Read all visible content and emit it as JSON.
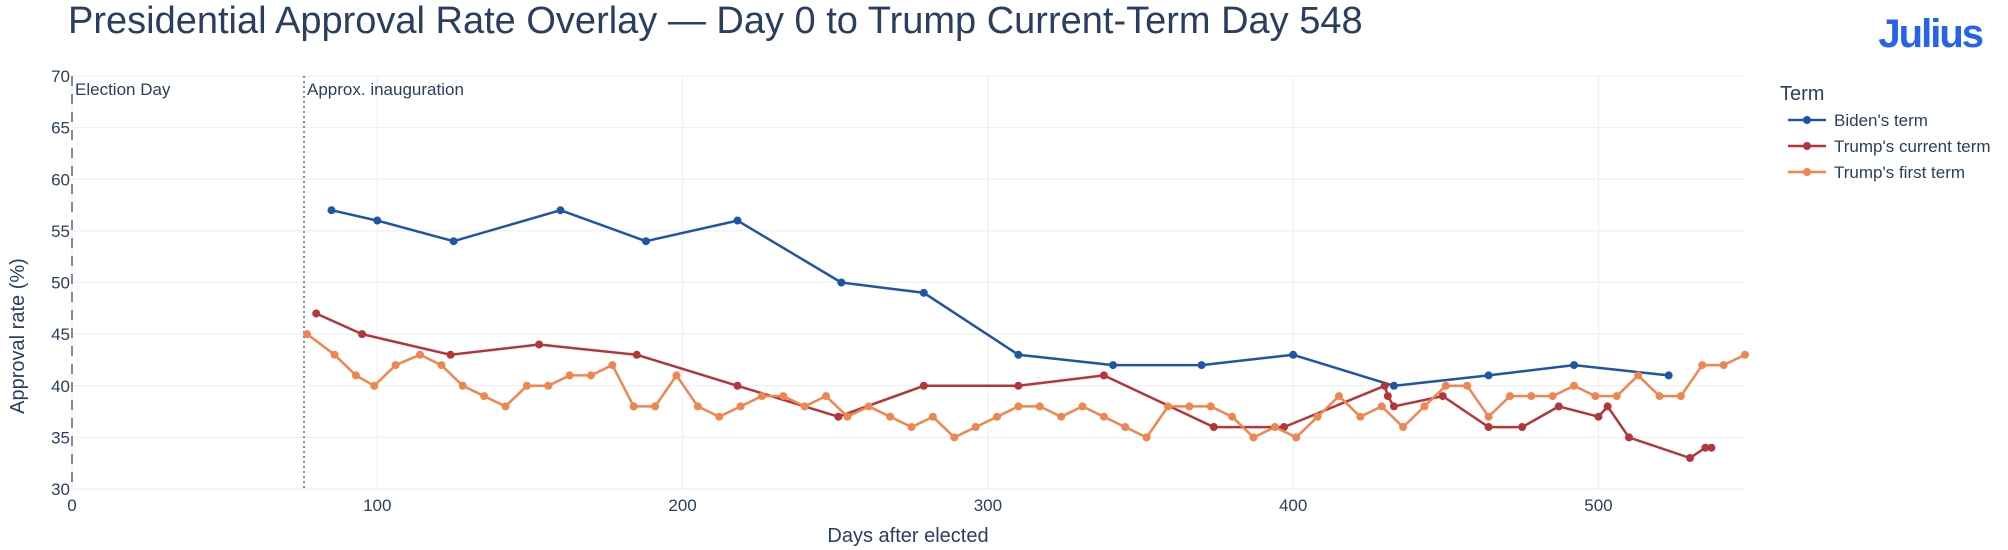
{
  "title": "Presidential Approval Rate Overlay — Day 0 to Trump Current-Term Day 548",
  "brand": "Julius",
  "chart_data": {
    "type": "line",
    "title": "Presidential Approval Rate Overlay — Day 0 to Trump Current-Term Day 548",
    "xlabel": "Days after elected",
    "ylabel": "Approval rate (%)",
    "xlim": [
      0,
      548
    ],
    "ylim": [
      30,
      70
    ],
    "x_ticks": [
      0,
      100,
      200,
      300,
      400,
      500
    ],
    "y_ticks": [
      30,
      35,
      40,
      45,
      50,
      55,
      60,
      65,
      70
    ],
    "grid": true,
    "legend_title": "Term",
    "legend_position": "top-right",
    "annotations": [
      {
        "text": "Election Day",
        "x": 0,
        "line": "dashed"
      },
      {
        "text": "Approx. inauguration",
        "x": 76,
        "line": "dotted"
      }
    ],
    "series": [
      {
        "name": "Biden's term",
        "color": "#1f56a4",
        "points": [
          [
            85,
            57
          ],
          [
            100,
            56
          ],
          [
            125,
            54
          ],
          [
            160,
            57
          ],
          [
            188,
            54
          ],
          [
            218,
            56
          ],
          [
            252,
            50
          ],
          [
            279,
            49
          ],
          [
            310,
            43
          ],
          [
            341,
            42
          ],
          [
            370,
            42
          ],
          [
            400,
            43
          ],
          [
            433,
            40
          ],
          [
            464,
            41
          ],
          [
            492,
            42
          ],
          [
            523,
            41
          ]
        ]
      },
      {
        "name": "Trump's current term",
        "color": "#b5363a",
        "points": [
          [
            80,
            47
          ],
          [
            95,
            45
          ],
          [
            124,
            43
          ],
          [
            153,
            44
          ],
          [
            185,
            43
          ],
          [
            218,
            40
          ],
          [
            251,
            37
          ],
          [
            279,
            40
          ],
          [
            310,
            40
          ],
          [
            338,
            41
          ],
          [
            374,
            36
          ],
          [
            397,
            36
          ],
          [
            430,
            40
          ],
          [
            431,
            39
          ],
          [
            433,
            38
          ],
          [
            449,
            39
          ],
          [
            464,
            36
          ],
          [
            475,
            36
          ],
          [
            487,
            38
          ],
          [
            500,
            37
          ],
          [
            503,
            38
          ],
          [
            510,
            35
          ],
          [
            530,
            33
          ],
          [
            535,
            34
          ],
          [
            537,
            34
          ]
        ]
      },
      {
        "name": "Trump's first term",
        "color": "#f0864f",
        "points": [
          [
            77,
            45
          ],
          [
            86,
            43
          ],
          [
            93,
            41
          ],
          [
            99,
            40
          ],
          [
            106,
            42
          ],
          [
            114,
            43
          ],
          [
            121,
            42
          ],
          [
            128,
            40
          ],
          [
            135,
            39
          ],
          [
            142,
            38
          ],
          [
            149,
            40
          ],
          [
            156,
            40
          ],
          [
            163,
            41
          ],
          [
            170,
            41
          ],
          [
            177,
            42
          ],
          [
            184,
            38
          ],
          [
            191,
            38
          ],
          [
            198,
            41
          ],
          [
            205,
            38
          ],
          [
            212,
            37
          ],
          [
            219,
            38
          ],
          [
            226,
            39
          ],
          [
            233,
            39
          ],
          [
            240,
            38
          ],
          [
            247,
            39
          ],
          [
            254,
            37
          ],
          [
            261,
            38
          ],
          [
            268,
            37
          ],
          [
            275,
            36
          ],
          [
            282,
            37
          ],
          [
            289,
            35
          ],
          [
            296,
            36
          ],
          [
            303,
            37
          ],
          [
            310,
            38
          ],
          [
            317,
            38
          ],
          [
            324,
            37
          ],
          [
            331,
            38
          ],
          [
            338,
            37
          ],
          [
            345,
            36
          ],
          [
            352,
            35
          ],
          [
            359,
            38
          ],
          [
            366,
            38
          ],
          [
            373,
            38
          ],
          [
            380,
            37
          ],
          [
            387,
            35
          ],
          [
            394,
            36
          ],
          [
            401,
            35
          ],
          [
            408,
            37
          ],
          [
            415,
            39
          ],
          [
            422,
            37
          ],
          [
            429,
            38
          ],
          [
            436,
            36
          ],
          [
            443,
            38
          ],
          [
            450,
            40
          ],
          [
            457,
            40
          ],
          [
            464,
            37
          ],
          [
            471,
            39
          ],
          [
            478,
            39
          ],
          [
            485,
            39
          ],
          [
            492,
            40
          ],
          [
            499,
            39
          ],
          [
            506,
            39
          ],
          [
            513,
            41
          ],
          [
            520,
            39
          ],
          [
            527,
            39
          ],
          [
            534,
            42
          ],
          [
            541,
            42
          ],
          [
            548,
            43
          ]
        ]
      }
    ]
  }
}
